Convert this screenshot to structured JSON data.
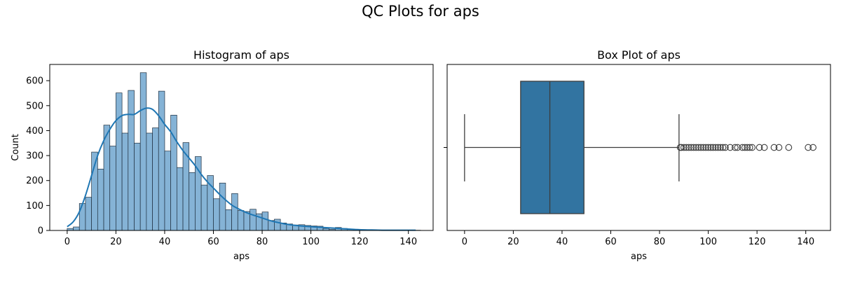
{
  "figure": {
    "suptitle": "QC Plots for aps",
    "colors": {
      "hist_fill": "#85b3d6",
      "hist_edge": "#1f2f3f",
      "kde_line": "#1f77b4",
      "box_fill": "#3274a1",
      "box_edge": "#3d3d3d",
      "axis": "#000000"
    }
  },
  "chart_data": [
    {
      "type": "bar",
      "subtype": "histogram_with_kde",
      "title": "Histogram of aps",
      "xlabel": "aps",
      "ylabel": "Count",
      "xlim": [
        -7.15,
        150.15
      ],
      "ylim": [
        0,
        665
      ],
      "xticks": [
        0,
        20,
        40,
        60,
        80,
        100,
        120,
        140
      ],
      "yticks": [
        0,
        100,
        200,
        300,
        400,
        500,
        600
      ],
      "bin_width": 2.5,
      "bin_start": 0,
      "values": [
        8,
        14,
        108,
        133,
        314,
        246,
        422,
        338,
        551,
        390,
        561,
        350,
        632,
        390,
        411,
        558,
        318,
        462,
        252,
        352,
        232,
        296,
        182,
        220,
        127,
        190,
        83,
        148,
        80,
        76,
        85,
        67,
        74,
        40,
        45,
        30,
        26,
        22,
        23,
        20,
        18,
        17,
        8,
        5,
        12,
        8,
        5,
        3,
        3,
        2,
        1,
        1,
        1,
        1,
        1,
        1,
        1,
        1
      ],
      "kde": {
        "x": [
          0,
          2.5,
          5,
          7.5,
          10,
          12.5,
          15,
          17.5,
          20,
          22.5,
          25,
          27.5,
          30,
          32.5,
          35,
          37.5,
          40,
          42.5,
          45,
          47.5,
          50,
          52.5,
          55,
          57.5,
          60,
          62.5,
          65,
          67.5,
          70,
          72.5,
          75,
          77.5,
          80,
          82.5,
          85,
          87.5,
          90,
          95,
          100,
          105,
          110,
          115,
          120,
          125,
          130,
          135,
          143
        ],
        "y": [
          15,
          35,
          75,
          140,
          220,
          300,
          360,
          405,
          440,
          460,
          465,
          465,
          480,
          490,
          485,
          460,
          425,
          395,
          355,
          320,
          290,
          260,
          225,
          195,
          170,
          145,
          122,
          102,
          88,
          76,
          66,
          58,
          50,
          42,
          35,
          30,
          25,
          19,
          15,
          12,
          9,
          6,
          3,
          2,
          1,
          1,
          1
        ]
      }
    },
    {
      "type": "box",
      "title": "Box Plot of aps",
      "xlabel": "aps",
      "xlim": [
        -7.15,
        150.15
      ],
      "xticks": [
        0,
        20,
        40,
        60,
        80,
        100,
        120,
        140
      ],
      "whisker_low": 0,
      "q1": 23,
      "median": 35,
      "q3": 49,
      "whisker_high": 88,
      "outliers": [
        88.5,
        89,
        90,
        91,
        92,
        93,
        94,
        95,
        96,
        97,
        98,
        99,
        100,
        101,
        102,
        103,
        104,
        105,
        106,
        107,
        109,
        111,
        112,
        114,
        115,
        116,
        117,
        118,
        121,
        123,
        127,
        129,
        133,
        141,
        143
      ]
    }
  ]
}
